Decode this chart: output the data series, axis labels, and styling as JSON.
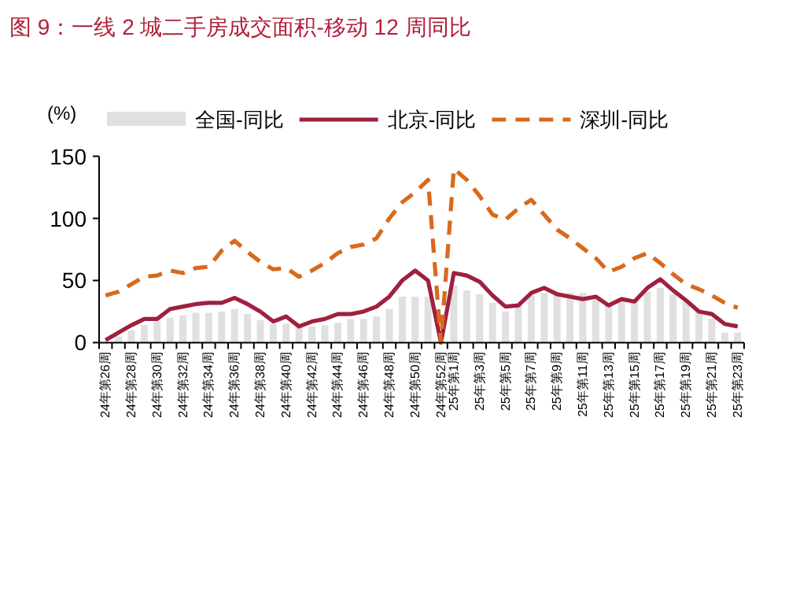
{
  "chart_data": {
    "type": "line",
    "title": "图 9：一线 2 城二手房成交面积-移动 12 周同比",
    "ylabel": "(%)",
    "categories": [
      "24年第26周",
      null,
      "24年第28周",
      null,
      "24年第30周",
      null,
      "24年第32周",
      null,
      "24年第34周",
      null,
      "24年第36周",
      null,
      "24年第38周",
      null,
      "24年第40周",
      null,
      "24年第42周",
      null,
      "24年第44周",
      null,
      "24年第46周",
      null,
      "24年第48周",
      null,
      "24年第50周",
      null,
      "24年第52周",
      "25年第1周",
      null,
      "25年第3周",
      null,
      "25年第5周",
      null,
      "25年第7周",
      null,
      "25年第9周",
      null,
      "25年第11周",
      null,
      "25年第13周",
      null,
      "25年第15周",
      null,
      "25年第17周",
      null,
      "25年第19周",
      null,
      "25年第21周",
      null,
      "25年第23周"
    ],
    "series": [
      {
        "name": "全国-同比",
        "type": "bar",
        "color": "#e0e0e0",
        "values": [
          null,
          5,
          10,
          14,
          17,
          20,
          22,
          24,
          24,
          25,
          27,
          23,
          18,
          15,
          15,
          14,
          13,
          14,
          16,
          19,
          19,
          21,
          27,
          37,
          37,
          37,
          null,
          46,
          42,
          39,
          32,
          25,
          30,
          38,
          40,
          39,
          40,
          40,
          36,
          32,
          35,
          34,
          41,
          44,
          39,
          33,
          25,
          19,
          8,
          8
        ]
      },
      {
        "name": "北京-同比",
        "line_style": "solid",
        "color": "#a0203f",
        "values": [
          2,
          8,
          14,
          19,
          19,
          27,
          29,
          31,
          32,
          32,
          36,
          31,
          25,
          17,
          21,
          13,
          17,
          19,
          23,
          23,
          25,
          29,
          37,
          50,
          58,
          50,
          0,
          56,
          54,
          49,
          38,
          29,
          30,
          40,
          44,
          39,
          37,
          35,
          37,
          30,
          35,
          33,
          44,
          51,
          42,
          34,
          25,
          23,
          15,
          13
        ]
      },
      {
        "name": "深圳-同比",
        "line_style": "dashed",
        "color": "#d9691c",
        "values": [
          38,
          41,
          47,
          53,
          54,
          58,
          56,
          60,
          61,
          74,
          82,
          73,
          65,
          59,
          60,
          53,
          58,
          64,
          72,
          77,
          79,
          84,
          100,
          113,
          121,
          131,
          0,
          140,
          131,
          118,
          103,
          99,
          108,
          115,
          103,
          91,
          84,
          76,
          68,
          57,
          61,
          68,
          72,
          64,
          55,
          47,
          43,
          38,
          32,
          28
        ]
      }
    ],
    "ylim": [
      0,
      150
    ],
    "yticks": [
      0,
      50,
      100,
      150
    ],
    "grid": false,
    "legend": "top",
    "marker": "none"
  }
}
